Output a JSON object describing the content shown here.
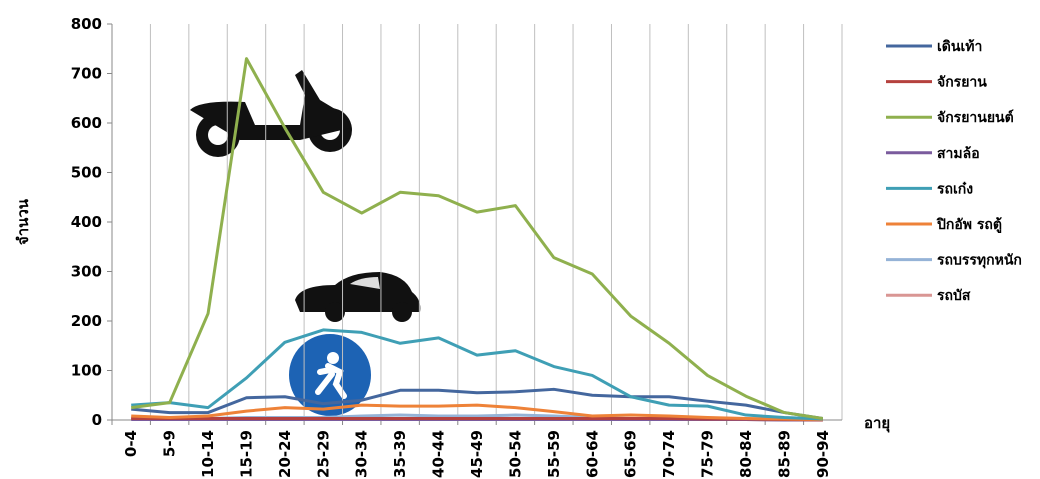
{
  "chart_data": {
    "type": "line",
    "y_label": "จำนวน",
    "x_label": "อายุ",
    "categories": [
      "0-4",
      "5-9",
      "10-14",
      "15-19",
      "20-24",
      "25-29",
      "30-34",
      "35-39",
      "40-44",
      "45-49",
      "50-54",
      "55-59",
      "60-64",
      "65-69",
      "70-74",
      "75-79",
      "80-84",
      "85-89",
      "90-94"
    ],
    "ylim": [
      0,
      800
    ],
    "yticks": [
      0,
      100,
      200,
      300,
      400,
      500,
      600,
      700,
      800
    ],
    "grid": "x",
    "legend": "right",
    "series": [
      {
        "name": "เดินเท้า",
        "color": "#44679e",
        "values": [
          22,
          15,
          15,
          45,
          47,
          33,
          40,
          60,
          60,
          55,
          57,
          62,
          50,
          47,
          47,
          38,
          30,
          15,
          3
        ]
      },
      {
        "name": "จักรยาน",
        "color": "#b5413e",
        "values": [
          3,
          3,
          3,
          3,
          3,
          3,
          3,
          3,
          3,
          3,
          3,
          3,
          3,
          3,
          3,
          2,
          2,
          1,
          0
        ]
      },
      {
        "name": "จักรยานยนต์",
        "color": "#8fb04e",
        "values": [
          25,
          35,
          215,
          730,
          590,
          460,
          418,
          460,
          453,
          420,
          433,
          328,
          295,
          210,
          155,
          90,
          48,
          15,
          3
        ]
      },
      {
        "name": "สามล้อ",
        "color": "#7a5b9d",
        "values": [
          1,
          1,
          1,
          1,
          1,
          1,
          1,
          1,
          1,
          1,
          1,
          1,
          1,
          1,
          1,
          1,
          1,
          0,
          0
        ]
      },
      {
        "name": "รถเก๋ง",
        "color": "#3f9fb5",
        "values": [
          30,
          35,
          25,
          85,
          157,
          182,
          177,
          155,
          166,
          131,
          140,
          108,
          90,
          47,
          30,
          28,
          10,
          5,
          2
        ]
      },
      {
        "name": "ปิกอัพ รถตู้",
        "color": "#ee8238",
        "values": [
          8,
          5,
          8,
          18,
          25,
          22,
          30,
          28,
          28,
          30,
          25,
          17,
          8,
          10,
          8,
          5,
          3,
          2,
          1
        ]
      },
      {
        "name": "รถบรรทุกหนัก",
        "color": "#95b3d7",
        "values": [
          5,
          3,
          3,
          5,
          5,
          5,
          8,
          10,
          8,
          8,
          10,
          8,
          5,
          3,
          3,
          2,
          1,
          1,
          0
        ]
      },
      {
        "name": "รถบัส",
        "color": "#d99694",
        "values": [
          2,
          2,
          2,
          2,
          2,
          2,
          2,
          2,
          2,
          2,
          2,
          2,
          2,
          2,
          2,
          1,
          1,
          0,
          0
        ]
      }
    ]
  }
}
